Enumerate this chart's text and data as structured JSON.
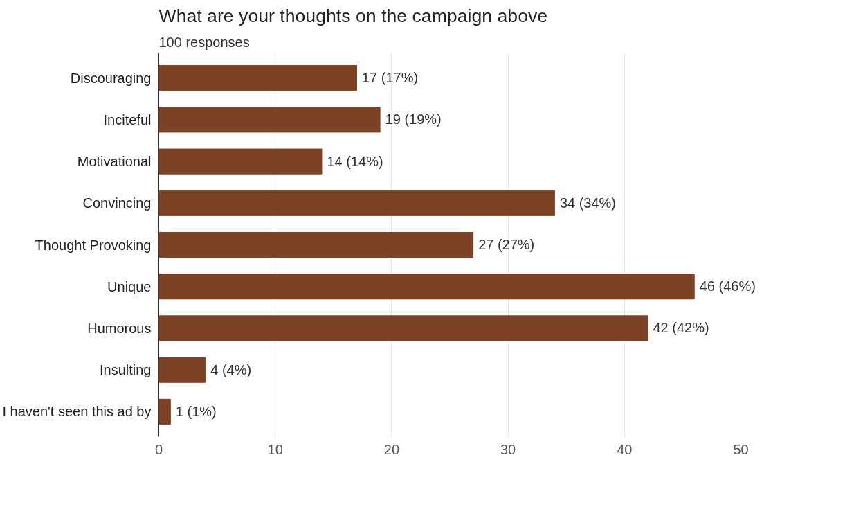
{
  "chart_data": {
    "type": "bar",
    "orientation": "horizontal",
    "title": "What are your thoughts on the campaign above",
    "subtitle": "100 responses",
    "categories": [
      "Discouraging",
      "Inciteful",
      "Motivational",
      "Convincing",
      "Thought Provoking",
      "Unique",
      "Humorous",
      "Insulting",
      "I haven't seen this ad by"
    ],
    "values": [
      17,
      19,
      14,
      34,
      27,
      46,
      42,
      4,
      1
    ],
    "value_labels": [
      "17 (17%)",
      "19 (19%)",
      "14 (14%)",
      "34 (34%)",
      "27 (27%)",
      "46 (46%)",
      "42 (42%)",
      "4 (4%)",
      "1 (1%)"
    ],
    "color": "#7b4226",
    "xlim": [
      0,
      50
    ],
    "xticks": [
      0,
      10,
      20,
      30,
      40,
      50
    ],
    "grid": "x"
  }
}
